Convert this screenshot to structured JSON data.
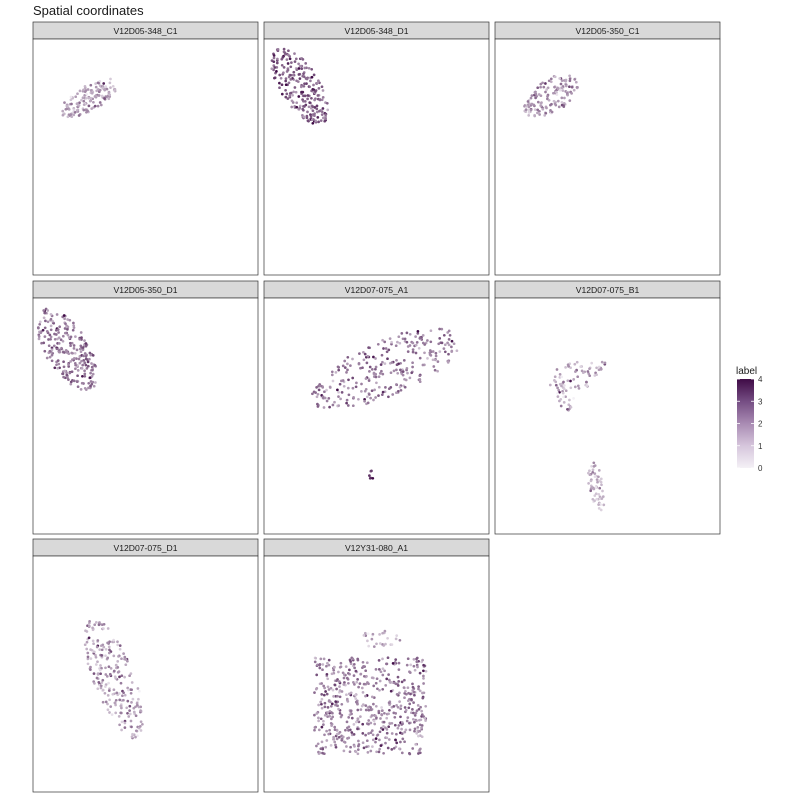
{
  "chart_data": {
    "type": "scatter",
    "title": "Spatial coordinates",
    "facet_layout": {
      "ncol": 3,
      "nrow": 3
    },
    "grid": false,
    "legend": {
      "title": "label",
      "placement": "right",
      "range": [
        0,
        4
      ],
      "ticks": [
        0,
        1,
        2,
        3,
        4
      ],
      "color_low": "#f4f1f6",
      "color_high": "#3f0b46"
    },
    "x_range": [
      0,
      100
    ],
    "y_range": [
      0,
      100
    ],
    "panels": [
      {
        "name": "V12D05-348_C1",
        "seed": 11,
        "blobs": [
          {
            "shape": "ellipse",
            "cx": 25,
            "cy": 25,
            "rx": 14,
            "ry": 5.5,
            "angle": -28,
            "n": 140,
            "mean": 1.4
          }
        ]
      },
      {
        "name": "V12D05-348_D1",
        "seed": 23,
        "blobs": [
          {
            "shape": "ellipse",
            "cx": 16,
            "cy": 20,
            "rx": 19,
            "ry": 8.5,
            "angle": 55,
            "n": 230,
            "mean": 2.4
          }
        ]
      },
      {
        "name": "V12D05-350_C1",
        "seed": 37,
        "blobs": [
          {
            "shape": "ellipse",
            "cx": 25,
            "cy": 24,
            "rx": 13.5,
            "ry": 7,
            "angle": -32,
            "n": 140,
            "mean": 1.5
          }
        ]
      },
      {
        "name": "V12D05-350_D1",
        "seed": 41,
        "blobs": [
          {
            "shape": "ellipse",
            "cx": 15,
            "cy": 22,
            "rx": 20,
            "ry": 9.5,
            "angle": 57,
            "n": 250,
            "mean": 2.0
          }
        ]
      },
      {
        "name": "V12D07-075_A1",
        "seed": 53,
        "blobs": [
          {
            "shape": "ellipse",
            "cx": 54,
            "cy": 30,
            "rx": 36,
            "ry": 12,
            "angle": -22,
            "n": 280,
            "mean": 1.9
          },
          {
            "shape": "ellipse",
            "cx": 48,
            "cy": 75,
            "rx": 2,
            "ry": 2,
            "angle": 0,
            "n": 6,
            "mean": 3.6
          }
        ]
      },
      {
        "name": "V12D07-075_B1",
        "seed": 67,
        "blobs": [
          {
            "shape": "ellipse",
            "cx": 36,
            "cy": 33,
            "rx": 15,
            "ry": 6,
            "angle": -18,
            "n": 60,
            "mean": 1.2
          },
          {
            "shape": "ellipse",
            "cx": 31,
            "cy": 42,
            "rx": 7,
            "ry": 3.5,
            "angle": 60,
            "n": 25,
            "mean": 1.0
          },
          {
            "shape": "ellipse",
            "cx": 45,
            "cy": 80,
            "rx": 11,
            "ry": 3.3,
            "angle": 80,
            "n": 55,
            "mean": 1.0
          }
        ]
      },
      {
        "name": "V12D07-075_D1",
        "seed": 79,
        "blobs": [
          {
            "shape": "ellipse",
            "cx": 36,
            "cy": 52,
            "rx": 27,
            "ry": 9,
            "angle": 68,
            "n": 230,
            "mean": 1.3
          }
        ]
      },
      {
        "name": "V12Y31-080_A1",
        "seed": 97,
        "blobs": [
          {
            "shape": "rect",
            "x0": 22,
            "x1": 72,
            "y0": 43,
            "y1": 84,
            "n": 560,
            "mean": 1.8
          },
          {
            "shape": "ellipse",
            "cx": 52,
            "cy": 35,
            "rx": 9,
            "ry": 4,
            "angle": 0,
            "n": 25,
            "mean": 1.0
          }
        ]
      }
    ]
  }
}
